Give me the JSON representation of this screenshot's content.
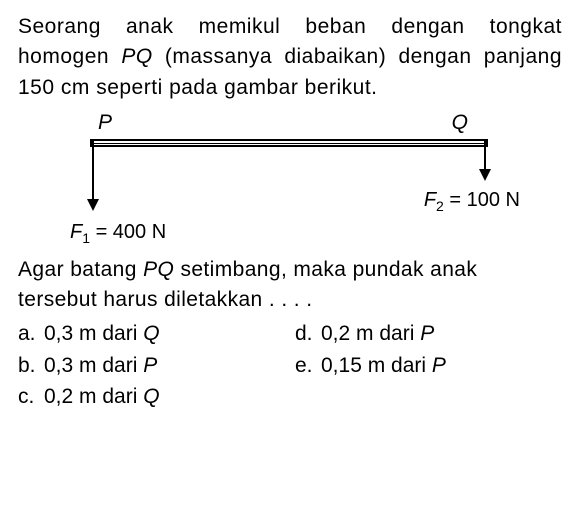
{
  "question": {
    "line1": "Seorang anak memikul beban dengan tongkat homogen ",
    "pq": "PQ",
    "line1b": " (massanya diabaikan) dengan panjang 150 cm seperti pada gambar berikut."
  },
  "diagram": {
    "pointP": "P",
    "pointQ": "Q",
    "f1_var": "F",
    "f1_sub": "1",
    "f1_rest": " = 400 N",
    "f2_var": "F",
    "f2_sub": "2",
    "f2_rest": " = 100 N"
  },
  "followup": {
    "part1": "Agar batang ",
    "pq": "PQ",
    "part2": " setimbang, maka pundak anak tersebut harus diletakkan . . . ."
  },
  "options": {
    "a_letter": "a.",
    "a_text": "0,3 m dari ",
    "a_point": "Q",
    "b_letter": "b.",
    "b_text": "0,3 m dari ",
    "b_point": "P",
    "c_letter": "c.",
    "c_text": "0,2 m dari ",
    "c_point": "Q",
    "d_letter": "d.",
    "d_text": "0,2 m dari ",
    "d_point": "P",
    "e_letter": "e.",
    "e_text": "0,15 m dari ",
    "e_point": "P"
  },
  "colors": {
    "text": "#000000",
    "background": "#ffffff"
  }
}
